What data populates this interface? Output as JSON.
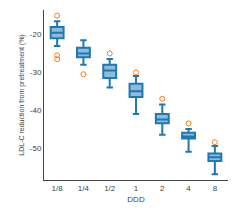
{
  "chart_data": {
    "type": "box",
    "xlabel": "DDD",
    "ylabel": "LDL-C reduction from pretreatment (%)",
    "categories": [
      "1/8",
      "1/4",
      "1/2",
      "1",
      "2",
      "4",
      "8"
    ],
    "boxes": [
      {
        "q1": -21.0,
        "median": -19.5,
        "q3": -18.0,
        "whislo": -23.0,
        "whishi": -16.5,
        "fliers_low": [
          -25.5,
          -26.5
        ],
        "fliers_high": [
          -15.0
        ]
      },
      {
        "q1": -26.0,
        "median": -25.0,
        "q3": -23.5,
        "whislo": -28.0,
        "whishi": -21.5,
        "fliers_low": [
          -30.5
        ],
        "fliers_high": []
      },
      {
        "q1": -31.5,
        "median": -29.5,
        "q3": -28.0,
        "whislo": -34.0,
        "whishi": -26.5,
        "fliers_low": [],
        "fliers_high": [
          -25.0
        ]
      },
      {
        "q1": -36.5,
        "median": -35.0,
        "q3": -33.0,
        "whislo": -41.0,
        "whishi": -31.0,
        "fliers_low": [],
        "fliers_high": [
          -30.0
        ]
      },
      {
        "q1": -43.5,
        "median": -42.5,
        "q3": -41.0,
        "whislo": -46.5,
        "whishi": -38.5,
        "fliers_low": [],
        "fliers_high": [
          -37.0
        ]
      },
      {
        "q1": -47.5,
        "median": -47.0,
        "q3": -46.0,
        "whislo": -51.0,
        "whishi": -45.0,
        "fliers_low": [],
        "fliers_high": [
          -43.5
        ]
      },
      {
        "q1": -53.5,
        "median": -52.5,
        "q3": -51.5,
        "whislo": -57.0,
        "whishi": -49.5,
        "fliers_low": [],
        "fliers_high": [
          -48.5
        ]
      }
    ],
    "ylim": [
      -58.5,
      -13.5
    ],
    "yticks": [
      -20,
      -30,
      -40,
      -50
    ],
    "marker": "circle-open",
    "grid": false
  }
}
